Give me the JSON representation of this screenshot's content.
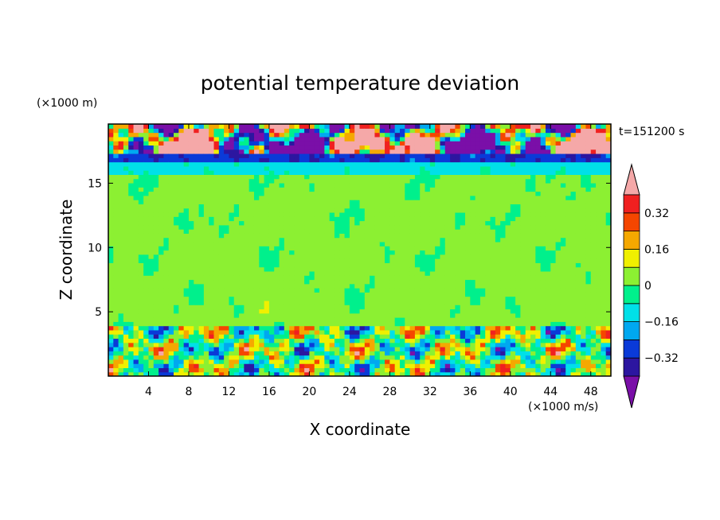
{
  "chart_data": {
    "type": "heatmap",
    "title": "potential temperature deviation",
    "xlabel": "X coordinate",
    "ylabel": "Z coordinate",
    "x_unit": "(×1000 m/s)",
    "y_unit": "(×1000 m)",
    "time_label": "t=151200 s",
    "xlim": [
      0,
      50
    ],
    "ylim": [
      0,
      19.6
    ],
    "x_ticks": [
      4,
      8,
      12,
      16,
      20,
      24,
      28,
      32,
      36,
      40,
      44,
      48
    ],
    "y_ticks": [
      5,
      10,
      15
    ],
    "colorbar": {
      "labels": [
        "0.32",
        "0.16",
        "0",
        "-0.16",
        "-0.32"
      ],
      "label_values": [
        0.32,
        0.16,
        0,
        -0.16,
        -0.32
      ],
      "levels": [
        -0.4,
        -0.32,
        -0.24,
        -0.16,
        -0.08,
        0,
        0.08,
        0.16,
        0.24,
        0.32,
        0.4
      ],
      "colors": [
        "#7a0fa8",
        "#2c16a0",
        "#0a3ad8",
        "#00a8f0",
        "#00e0e8",
        "#00f08c",
        "#8cf032",
        "#f0f000",
        "#f5a800",
        "#f54600",
        "#f02020",
        "#f5a8a8"
      ]
    },
    "regions": [
      {
        "z": [
          0,
          4
        ],
        "description": "turbulent boundary layer, values mixed -0.4 to 0.4+"
      },
      {
        "z": [
          4,
          15.6
        ],
        "description": "mostly 0 to 0.08 with patches -0.08 to 0"
      },
      {
        "z": [
          15.6,
          16.6
        ],
        "description": "band near -0.08 to -0.16"
      },
      {
        "z": [
          16.6,
          17.4
        ],
        "description": "band near -0.32"
      },
      {
        "z": [
          17.4,
          19.6
        ],
        "description": "alternating > 0.4 and < -0.4"
      }
    ]
  }
}
